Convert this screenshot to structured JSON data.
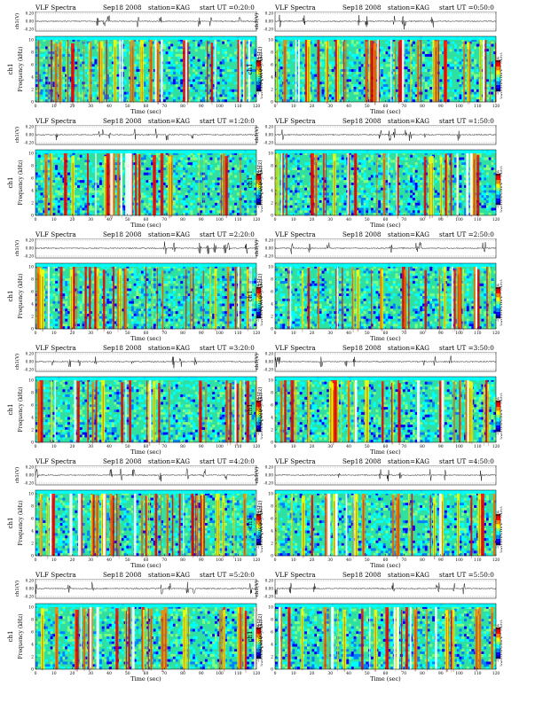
{
  "header": {
    "title": "VLF Spectra",
    "date": "Sep18 2008",
    "station": "station=KAG",
    "start_prefix": "start UT"
  },
  "axis_labels": {
    "waveform_y": "ch1(V)",
    "channel": "ch1",
    "spectrogram_y": "Frequency (kHz)",
    "x": "Time (sec)",
    "colorbar": "log10(PSD)(V^2/Hz)"
  },
  "colors": {
    "scale": [
      "#000080",
      "#0000ff",
      "#0080ff",
      "#00ffff",
      "#80ff80",
      "#ffff00",
      "#ff8000",
      "#ff0000",
      "#800000"
    ],
    "line": "#000000"
  },
  "chart_data": [
    {
      "panel": 1,
      "type": "heatmap",
      "start_ut": "=0:20:0"
    },
    {
      "panel": 2,
      "type": "heatmap",
      "start_ut": "=0:50:0"
    },
    {
      "panel": 3,
      "type": "heatmap",
      "start_ut": "=1:20:0"
    },
    {
      "panel": 4,
      "type": "heatmap",
      "start_ut": "=1:50:0"
    },
    {
      "panel": 5,
      "type": "heatmap",
      "start_ut": "=2:20:0"
    },
    {
      "panel": 6,
      "type": "heatmap",
      "start_ut": "=2:50:0"
    },
    {
      "panel": 7,
      "type": "heatmap",
      "start_ut": "=3:20:0"
    },
    {
      "panel": 8,
      "type": "heatmap",
      "start_ut": "=3:50:0"
    },
    {
      "panel": 9,
      "type": "heatmap",
      "start_ut": "=4:20:0"
    },
    {
      "panel": 10,
      "type": "heatmap",
      "start_ut": "=4:50:0"
    },
    {
      "panel": 11,
      "type": "heatmap",
      "start_ut": "=5:20:0"
    },
    {
      "panel": 12,
      "type": "heatmap",
      "start_ut": "=5:50:0"
    }
  ],
  "shared_axes": {
    "x_range": [
      0,
      120
    ],
    "x_ticks": [
      "0",
      "10",
      "20",
      "30",
      "40",
      "50",
      "60",
      "70",
      "80",
      "90",
      "100",
      "110",
      "120"
    ],
    "y_range_khz": [
      0,
      10
    ],
    "y_ticks": [
      "0",
      "2",
      "4",
      "6",
      "8",
      "10"
    ],
    "wave_ticks": [
      "0.20",
      "0.00",
      "-0.20"
    ],
    "wave_range_v": [
      -0.2,
      0.2
    ],
    "colorbar_range": [
      -7,
      -4
    ],
    "colorbar_ticks": [
      "-4",
      "-7"
    ]
  }
}
